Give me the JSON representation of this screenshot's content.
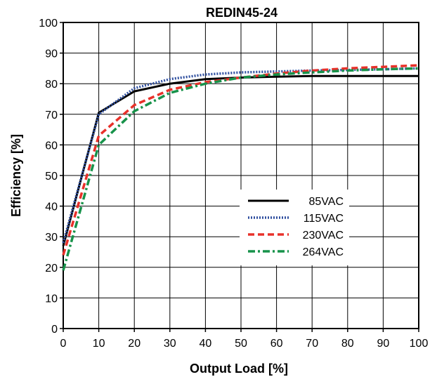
{
  "chart_data": {
    "type": "line",
    "title": "REDIN45-24",
    "xlabel": "Output Load [%]",
    "ylabel": "Efficiency [%]",
    "xlim": [
      0,
      100
    ],
    "ylim": [
      0,
      100
    ],
    "xticks": [
      "0",
      "10",
      "20",
      "30",
      "40",
      "50",
      "60",
      "70",
      "80",
      "90",
      "100"
    ],
    "yticks": [
      "0",
      "10",
      "20",
      "30",
      "40",
      "50",
      "60",
      "70",
      "80",
      "90",
      "100"
    ],
    "grid": true,
    "legend_position": "center-right",
    "series": [
      {
        "name": "85VAC",
        "color": "#000000",
        "style": "solid",
        "x": [
          0,
          10,
          20,
          30,
          40,
          50,
          60,
          70,
          80,
          90,
          100
        ],
        "y": [
          27,
          70.5,
          77.5,
          80,
          81.5,
          82,
          82.3,
          82.5,
          82.5,
          82.5,
          82.5
        ]
      },
      {
        "name": "115VAC",
        "color": "#2f4f9f",
        "style": "dotted",
        "x": [
          0,
          10,
          20,
          30,
          40,
          50,
          60,
          70,
          80,
          90,
          100
        ],
        "y": [
          28,
          70,
          78.5,
          81.5,
          83,
          83.7,
          84,
          84.3,
          84.5,
          84.7,
          85
        ]
      },
      {
        "name": "230VAC",
        "color": "#e8312a",
        "style": "dashed",
        "x": [
          0,
          10,
          20,
          30,
          40,
          50,
          60,
          70,
          80,
          90,
          100
        ],
        "y": [
          24,
          63,
          73,
          78,
          80.5,
          82,
          83.3,
          84.3,
          85,
          85.5,
          86
        ]
      },
      {
        "name": "264VAC",
        "color": "#17924a",
        "style": "dashdot",
        "x": [
          0,
          10,
          20,
          30,
          40,
          50,
          60,
          70,
          80,
          90,
          100
        ],
        "y": [
          19,
          60,
          71,
          77,
          80,
          82,
          83,
          83.7,
          84.3,
          84.7,
          85
        ]
      }
    ]
  }
}
